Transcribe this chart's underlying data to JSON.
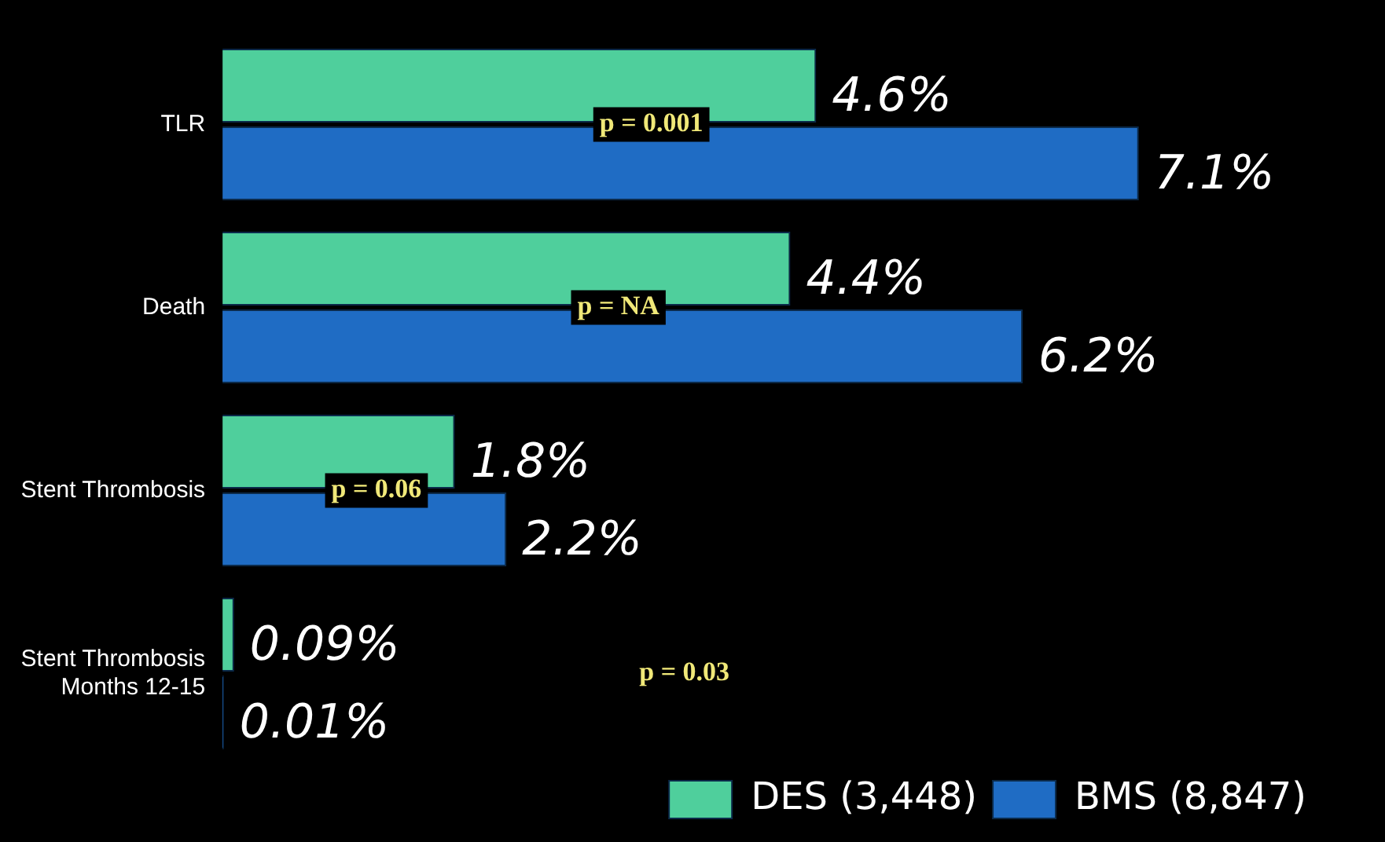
{
  "chart_data": {
    "type": "bar",
    "orientation": "horizontal",
    "categories": [
      "TLR",
      "Death",
      "Stent Thrombosis",
      "Stent Thrombosis Months 12-15"
    ],
    "series": [
      {
        "name": "DES (3,448)",
        "color": "#4fcf9c",
        "values": [
          4.6,
          4.4,
          1.8,
          0.09
        ],
        "value_labels": [
          "4.6%",
          "4.4%",
          "1.8%",
          "0.09%"
        ]
      },
      {
        "name": "BMS (8,847)",
        "color": "#1f6cc4",
        "values": [
          7.1,
          6.2,
          2.2,
          0.01
        ],
        "value_labels": [
          "7.1%",
          "6.2%",
          "2.2%",
          "0.01%"
        ]
      }
    ],
    "annotations": [
      "p = 0.001",
      "p = NA",
      "p = 0.06",
      "p = 0.03"
    ],
    "legend": "bottom right"
  }
}
